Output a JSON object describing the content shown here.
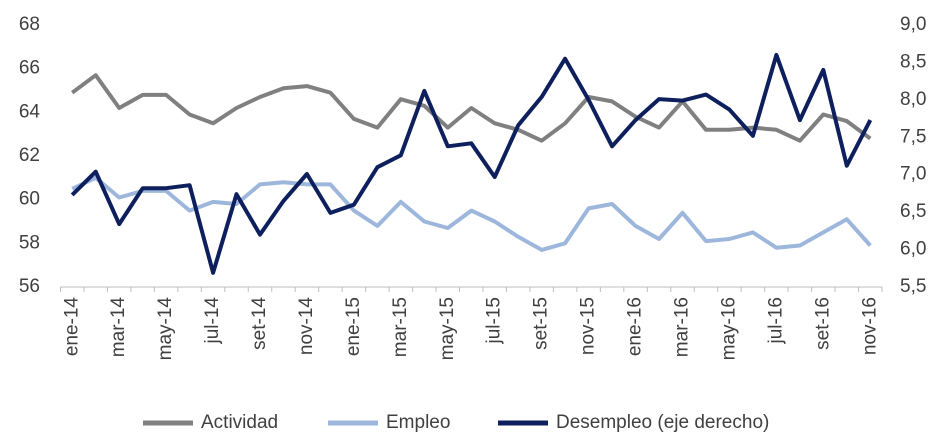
{
  "chart_data": {
    "type": "line",
    "categories": [
      "ene-14",
      null,
      "mar-14",
      null,
      "may-14",
      null,
      "jul-14",
      null,
      "set-14",
      null,
      "nov-14",
      null,
      "ene-15",
      null,
      "mar-15",
      null,
      "may-15",
      null,
      "jul-15",
      null,
      "set-15",
      null,
      "nov-15",
      null,
      "ene-16",
      null,
      "mar-16",
      null,
      "may-16",
      null,
      "jul-16",
      null,
      "set-16",
      null,
      "nov-16"
    ],
    "series": [
      {
        "name": "Actividad",
        "color": "#808080",
        "values": [
          64.9,
          65.7,
          64.2,
          64.8,
          64.8,
          63.9,
          63.5,
          64.2,
          64.7,
          65.1,
          65.2,
          64.9,
          63.7,
          63.3,
          64.6,
          64.3,
          63.3,
          64.2,
          63.5,
          63.2,
          62.7,
          63.5,
          64.7,
          64.5,
          63.8,
          63.3,
          64.5,
          63.2,
          63.2,
          63.3,
          63.2,
          62.7,
          63.9,
          63.6,
          62.8
        ]
      },
      {
        "name": "Empleo",
        "color": "#9db7dc",
        "values": [
          60.5,
          61.0,
          60.1,
          60.4,
          60.4,
          59.5,
          59.9,
          59.8,
          60.7,
          60.8,
          60.7,
          60.7,
          59.5,
          58.8,
          59.9,
          59.0,
          58.7,
          59.5,
          59.0,
          58.3,
          57.7,
          58.0,
          59.6,
          59.8,
          58.8,
          58.2,
          59.4,
          58.1,
          58.2,
          58.5,
          57.8,
          57.9,
          58.5,
          59.1,
          57.9
        ]
      },
      {
        "name": "Desempleo (eje derecho)",
        "color": "#0d1f5c",
        "axis": "y2",
        "values": [
          6.73,
          7.04,
          6.34,
          6.82,
          6.82,
          6.86,
          5.69,
          6.74,
          6.2,
          6.65,
          7.01,
          6.49,
          6.6,
          7.1,
          7.26,
          8.12,
          7.38,
          7.42,
          6.97,
          7.66,
          8.04,
          8.55,
          8.0,
          7.38,
          7.73,
          8.01,
          7.99,
          8.07,
          7.87,
          7.52,
          8.6,
          7.73,
          8.4,
          7.12,
          7.73
        ]
      }
    ],
    "ylim": [
      56,
      68
    ],
    "yticks": [
      56,
      58,
      60,
      62,
      64,
      66,
      68
    ],
    "y2lim": [
      5.5,
      9.0
    ],
    "y2ticks": [
      {
        "value": 5.5,
        "label": "5,5"
      },
      {
        "value": 6.0,
        "label": "6,0"
      },
      {
        "value": 6.5,
        "label": "6,5"
      },
      {
        "value": 7.0,
        "label": "7,0"
      },
      {
        "value": 7.5,
        "label": "7,5"
      },
      {
        "value": 8.0,
        "label": "8,0"
      },
      {
        "value": 8.5,
        "label": "8,5"
      },
      {
        "value": 9.0,
        "label": "9,0"
      }
    ],
    "grid": false,
    "legend": "bottom"
  }
}
